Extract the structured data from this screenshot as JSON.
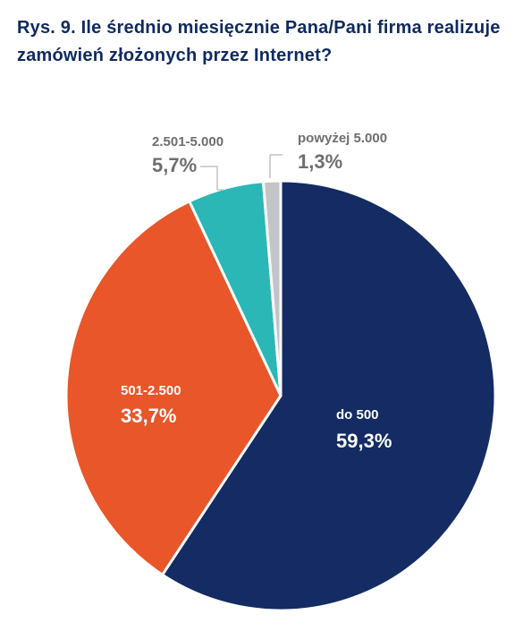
{
  "header": {
    "title": "Rys. 9. Ile średnio miesięcznie Pana/Pani firma realizuje zamówień złożonych przez Internet?"
  },
  "chart_data": {
    "type": "pie",
    "title": "Rys. 9. Ile średnio miesięcznie Pana/Pani firma realizuje zamówień złożonych przez Internet?",
    "slices": [
      {
        "label": "do 500",
        "value": 59.3,
        "value_label": "59,3%",
        "color": "#142b63",
        "label_color": "#ffffff"
      },
      {
        "label": "501-2.500",
        "value": 33.7,
        "value_label": "33,7%",
        "color": "#e8562a",
        "label_color": "#ffffff"
      },
      {
        "label": "2.501-5.000",
        "value": 5.7,
        "value_label": "5,7%",
        "color": "#2bb7b5",
        "label_color": "#6d6e70"
      },
      {
        "label": "powyżej 5.000",
        "value": 1.3,
        "value_label": "1,3%",
        "color": "#c3c4c6",
        "label_color": "#6d6e70"
      }
    ]
  }
}
